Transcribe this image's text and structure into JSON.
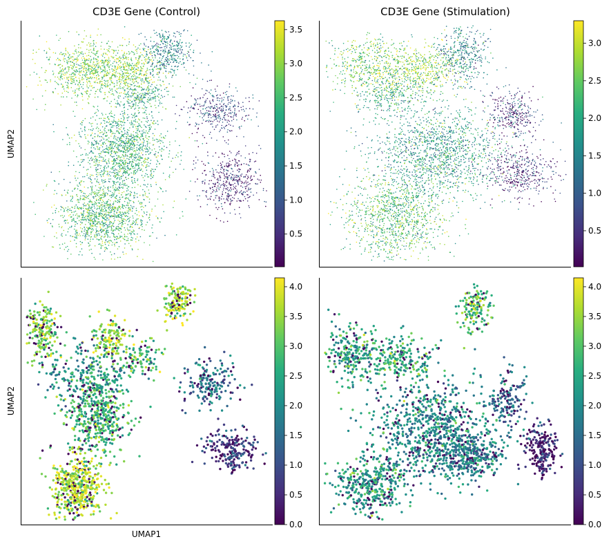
{
  "figure": {
    "panels": [
      {
        "title": "CD3E Gene (Control)",
        "ylabel": "UMAP2",
        "xlabel": ""
      },
      {
        "title": "CD3E Gene (Stimulation)",
        "ylabel": "",
        "xlabel": ""
      },
      {
        "title": "",
        "ylabel": "UMAP2",
        "xlabel": "UMAP1"
      },
      {
        "title": "",
        "ylabel": "",
        "xlabel": ""
      }
    ]
  },
  "chart_data": [
    {
      "type": "scatter",
      "title": "CD3E Gene (Control)",
      "xlabel": "",
      "ylabel": "UMAP2",
      "colormap": "viridis",
      "colorbar": {
        "range": [
          0.02,
          3.63
        ],
        "ticks": [
          0.5,
          1.0,
          1.5,
          2.0,
          2.5,
          3.0,
          3.5
        ],
        "tick_labels": [
          "0.5",
          "1.0",
          "1.5",
          "2.0",
          "2.5",
          "3.0",
          "3.5"
        ]
      },
      "point_size": "small",
      "clusters": [
        {
          "x": 0.24,
          "y": 0.8,
          "sx": 0.08,
          "sy": 0.06,
          "n": 700,
          "value": 2.8
        },
        {
          "x": 0.42,
          "y": 0.8,
          "sx": 0.07,
          "sy": 0.05,
          "n": 500,
          "value": 3.0
        },
        {
          "x": 0.58,
          "y": 0.87,
          "sx": 0.05,
          "sy": 0.05,
          "n": 400,
          "value": 1.6
        },
        {
          "x": 0.48,
          "y": 0.7,
          "sx": 0.05,
          "sy": 0.04,
          "n": 250,
          "value": 2.2
        },
        {
          "x": 0.78,
          "y": 0.63,
          "sx": 0.06,
          "sy": 0.05,
          "n": 350,
          "value": 0.8
        },
        {
          "x": 0.83,
          "y": 0.35,
          "sx": 0.06,
          "sy": 0.06,
          "n": 450,
          "value": 0.4
        },
        {
          "x": 0.4,
          "y": 0.47,
          "sx": 0.09,
          "sy": 0.09,
          "n": 1400,
          "value": 2.3
        },
        {
          "x": 0.32,
          "y": 0.2,
          "sx": 0.09,
          "sy": 0.07,
          "n": 1200,
          "value": 2.5
        }
      ]
    },
    {
      "type": "scatter",
      "title": "CD3E Gene (Stimulation)",
      "xlabel": "",
      "ylabel": "",
      "colormap": "viridis",
      "colorbar": {
        "range": [
          0.02,
          3.3
        ],
        "ticks": [
          0.5,
          1.0,
          1.5,
          2.0,
          2.5,
          3.0
        ],
        "tick_labels": [
          "0.5",
          "1.0",
          "1.5",
          "2.0",
          "2.5",
          "3.0"
        ]
      },
      "point_size": "small",
      "clusters": [
        {
          "x": 0.2,
          "y": 0.82,
          "sx": 0.08,
          "sy": 0.06,
          "n": 500,
          "value": 2.5
        },
        {
          "x": 0.4,
          "y": 0.8,
          "sx": 0.08,
          "sy": 0.05,
          "n": 500,
          "value": 2.7
        },
        {
          "x": 0.57,
          "y": 0.86,
          "sx": 0.05,
          "sy": 0.06,
          "n": 400,
          "value": 1.5
        },
        {
          "x": 0.28,
          "y": 0.7,
          "sx": 0.07,
          "sy": 0.04,
          "n": 300,
          "value": 2.0
        },
        {
          "x": 0.77,
          "y": 0.62,
          "sx": 0.05,
          "sy": 0.05,
          "n": 300,
          "value": 0.5
        },
        {
          "x": 0.8,
          "y": 0.38,
          "sx": 0.07,
          "sy": 0.05,
          "n": 400,
          "value": 0.4
        },
        {
          "x": 0.47,
          "y": 0.47,
          "sx": 0.13,
          "sy": 0.09,
          "n": 1500,
          "value": 1.8
        },
        {
          "x": 0.3,
          "y": 0.2,
          "sx": 0.1,
          "sy": 0.08,
          "n": 1100,
          "value": 2.3
        }
      ]
    },
    {
      "type": "scatter",
      "title": "",
      "xlabel": "UMAP1",
      "ylabel": "UMAP2",
      "colormap": "viridis",
      "colorbar": {
        "range": [
          0.0,
          4.15
        ],
        "ticks": [
          0.0,
          0.5,
          1.0,
          1.5,
          2.0,
          2.5,
          3.0,
          3.5,
          4.0
        ],
        "tick_labels": [
          "0.0",
          "0.5",
          "1.0",
          "1.5",
          "2.0",
          "2.5",
          "3.0",
          "3.5",
          "4.0"
        ]
      },
      "point_size": "large",
      "clusters": [
        {
          "x": 0.08,
          "y": 0.78,
          "sx": 0.03,
          "sy": 0.06,
          "n": 200,
          "value": 3.3
        },
        {
          "x": 0.35,
          "y": 0.75,
          "sx": 0.04,
          "sy": 0.05,
          "n": 150,
          "value": 3.5
        },
        {
          "x": 0.48,
          "y": 0.67,
          "sx": 0.05,
          "sy": 0.04,
          "n": 100,
          "value": 2.9
        },
        {
          "x": 0.62,
          "y": 0.9,
          "sx": 0.03,
          "sy": 0.04,
          "n": 150,
          "value": 3.6
        },
        {
          "x": 0.75,
          "y": 0.57,
          "sx": 0.05,
          "sy": 0.05,
          "n": 180,
          "value": 1.6
        },
        {
          "x": 0.83,
          "y": 0.3,
          "sx": 0.05,
          "sy": 0.04,
          "n": 200,
          "value": 0.7
        },
        {
          "x": 0.3,
          "y": 0.45,
          "sx": 0.06,
          "sy": 0.08,
          "n": 500,
          "value": 2.8
        },
        {
          "x": 0.22,
          "y": 0.15,
          "sx": 0.05,
          "sy": 0.06,
          "n": 500,
          "value": 3.6
        },
        {
          "x": 0.25,
          "y": 0.62,
          "sx": 0.1,
          "sy": 0.06,
          "n": 200,
          "value": 2.0
        }
      ]
    },
    {
      "type": "scatter",
      "title": "",
      "xlabel": "",
      "ylabel": "",
      "colormap": "viridis",
      "colorbar": {
        "range": [
          0.0,
          4.15
        ],
        "ticks": [
          0.0,
          0.5,
          1.0,
          1.5,
          2.0,
          2.5,
          3.0,
          3.5,
          4.0
        ],
        "tick_labels": [
          "0.0",
          "0.5",
          "1.0",
          "1.5",
          "2.0",
          "2.5",
          "3.0",
          "3.5",
          "4.0"
        ]
      },
      "point_size": "large",
      "clusters": [
        {
          "x": 0.12,
          "y": 0.7,
          "sx": 0.06,
          "sy": 0.06,
          "n": 250,
          "value": 2.4
        },
        {
          "x": 0.32,
          "y": 0.67,
          "sx": 0.07,
          "sy": 0.04,
          "n": 200,
          "value": 2.6
        },
        {
          "x": 0.62,
          "y": 0.88,
          "sx": 0.03,
          "sy": 0.05,
          "n": 150,
          "value": 3.0
        },
        {
          "x": 0.75,
          "y": 0.5,
          "sx": 0.04,
          "sy": 0.06,
          "n": 150,
          "value": 1.4
        },
        {
          "x": 0.88,
          "y": 0.3,
          "sx": 0.03,
          "sy": 0.05,
          "n": 200,
          "value": 0.4
        },
        {
          "x": 0.45,
          "y": 0.38,
          "sx": 0.12,
          "sy": 0.1,
          "n": 800,
          "value": 2.0
        },
        {
          "x": 0.2,
          "y": 0.16,
          "sx": 0.07,
          "sy": 0.06,
          "n": 400,
          "value": 2.2
        },
        {
          "x": 0.6,
          "y": 0.28,
          "sx": 0.07,
          "sy": 0.04,
          "n": 300,
          "value": 1.8
        }
      ]
    }
  ]
}
